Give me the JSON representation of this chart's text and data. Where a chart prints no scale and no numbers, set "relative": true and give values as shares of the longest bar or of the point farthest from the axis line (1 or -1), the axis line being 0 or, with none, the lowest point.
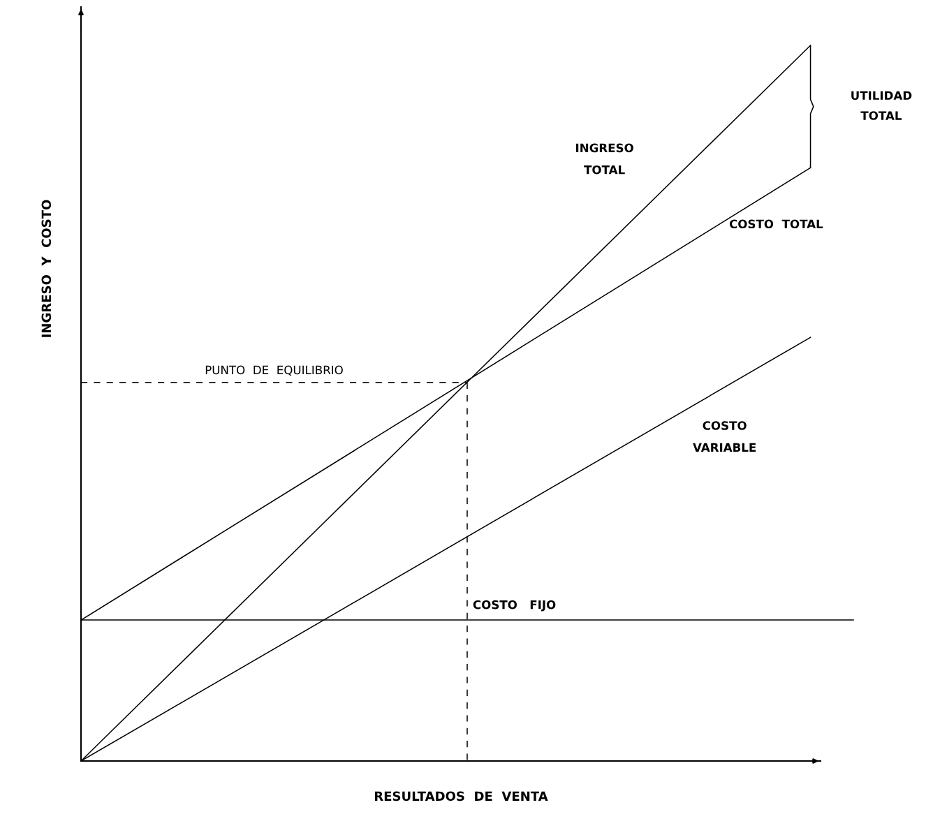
{
  "chart_data": {
    "type": "line",
    "relative": true,
    "xlabel": "RESULTADOS  DE  VENTA",
    "ylabel": "INGRESO  Y  COSTO",
    "categories": [
      null,
      null,
      null,
      null,
      null,
      null,
      null,
      null,
      null,
      null,
      null,
      null,
      null,
      null,
      null,
      null,
      null,
      null,
      null
    ],
    "series": [
      {
        "name": "INGRESO\nTOTAL",
        "color": "#000000",
        "values": [
          0,
          null,
          null,
          null,
          null,
          null,
          null,
          null,
          null,
          null,
          null,
          null,
          null,
          null,
          null,
          null,
          null,
          1,
          null
        ]
      },
      {
        "name": "COSTO  TOTAL",
        "color": "#000000",
        "values": [
          0.197,
          null,
          null,
          null,
          null,
          null,
          null,
          null,
          null,
          null,
          null,
          null,
          null,
          null,
          null,
          null,
          null,
          0.829,
          null
        ]
      },
      {
        "name": "COSTO\nVARIABLE",
        "color": "#000000",
        "values": [
          0,
          null,
          null,
          null,
          null,
          null,
          null,
          null,
          null,
          null,
          null,
          null,
          null,
          null,
          null,
          null,
          null,
          0.592,
          null
        ]
      },
      {
        "name": "COSTO   FIJO",
        "color": "#000000",
        "values": [
          0.197,
          null,
          null,
          null,
          null,
          null,
          null,
          null,
          null,
          null,
          null,
          null,
          null,
          null,
          null,
          null,
          null,
          null,
          0.197
        ]
      },
      {
        "color": "#000000",
        "line_style": "dashed",
        "values": [
          0.529,
          null,
          null,
          null,
          null,
          null,
          null,
          null,
          null,
          0.529,
          null,
          null,
          null,
          null,
          null,
          null,
          null,
          null,
          null
        ]
      }
    ],
    "annotations": [
      "PUNTO  DE  EQUILIBRIO",
      "UTILIDAD\nTOTAL"
    ],
    "legend": false,
    "grid": false
  }
}
